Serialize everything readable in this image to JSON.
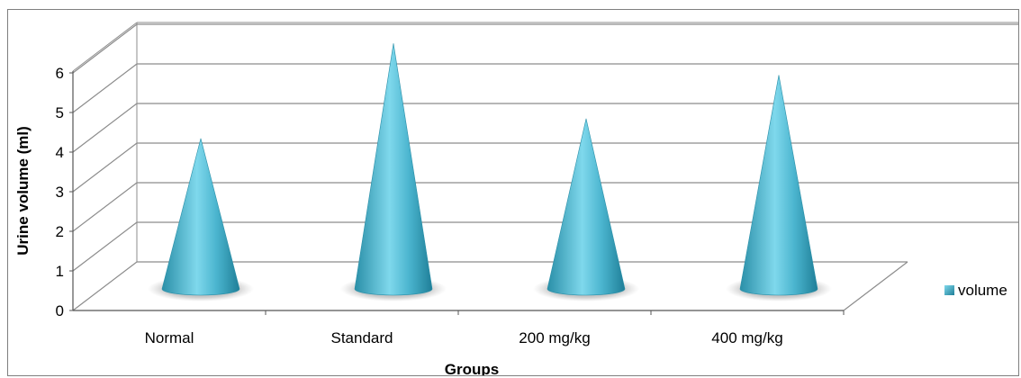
{
  "chart_data": {
    "type": "bar",
    "style": "3d-cone",
    "categories": [
      "Normal",
      "Standard",
      "200 mg/kg",
      "400 mg/kg"
    ],
    "series": [
      {
        "name": "volume",
        "values": [
          3.8,
          6.2,
          4.3,
          5.4
        ],
        "color": "#4bacc6"
      }
    ],
    "title": "",
    "xlabel": "Groups",
    "ylabel": "Urine volume (ml)",
    "ylim": [
      0,
      6
    ],
    "yticks": [
      "0",
      "1",
      "2",
      "3",
      "4",
      "5",
      "6"
    ],
    "grid": true,
    "legend_position": "right"
  }
}
